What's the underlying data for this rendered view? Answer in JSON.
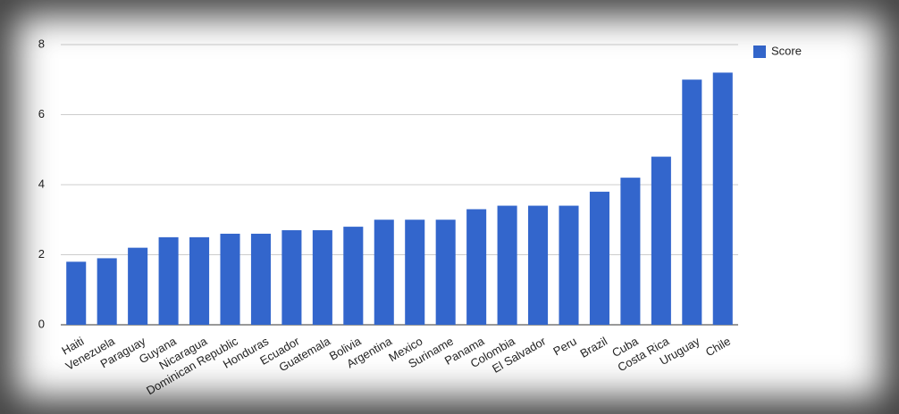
{
  "chart_data": {
    "type": "bar",
    "categories": [
      "Haiti",
      "Venezuela",
      "Paraguay",
      "Guyana",
      "Nicaragua",
      "Dominican Republic",
      "Honduras",
      "Ecuador",
      "Guatemala",
      "Bolivia",
      "Argentina",
      "Mexico",
      "Suriname",
      "Panama",
      "Colombia",
      "El Salvador",
      "Peru",
      "Brazil",
      "Cuba",
      "Costa Rica",
      "Uruguay",
      "Chile"
    ],
    "series": [
      {
        "name": "Score",
        "color": "#3366cc",
        "values": [
          1.8,
          1.9,
          2.2,
          2.5,
          2.5,
          2.6,
          2.6,
          2.7,
          2.7,
          2.8,
          3.0,
          3.0,
          3.0,
          3.3,
          3.4,
          3.4,
          3.4,
          3.8,
          4.2,
          4.8,
          7.0,
          7.2
        ]
      }
    ],
    "ylim": [
      0,
      8
    ],
    "yticks": [
      0,
      2,
      4,
      6,
      8
    ],
    "grid": true,
    "legend": "right"
  }
}
